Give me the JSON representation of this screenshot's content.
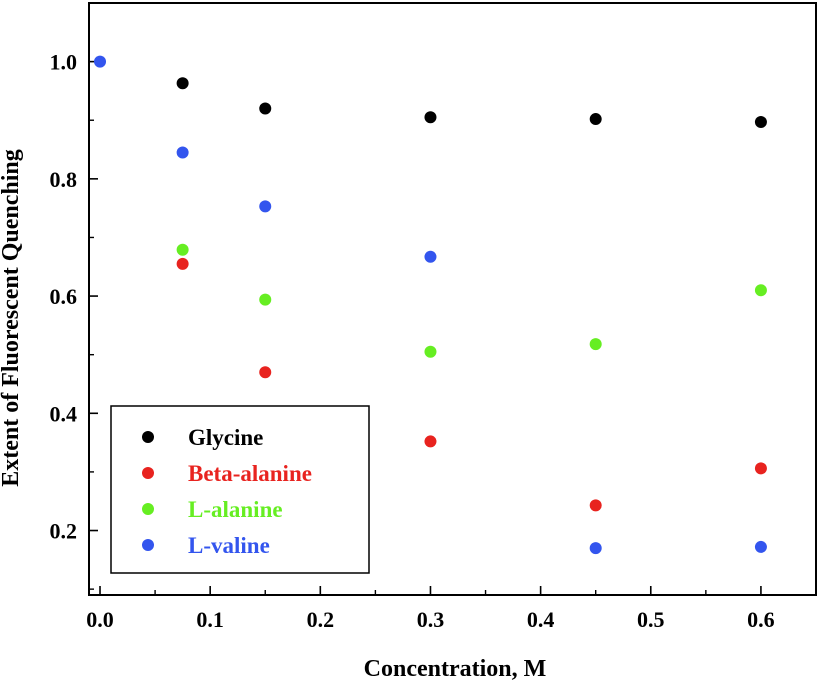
{
  "chart_data": {
    "type": "scatter",
    "title": "",
    "xlabel": "Concentration, M",
    "ylabel": "Extent of Fluorescent Quenching",
    "xlim": [
      -0.01,
      0.65
    ],
    "ylim": [
      0.09,
      1.1
    ],
    "x_ticks": [
      0.0,
      0.1,
      0.2,
      0.3,
      0.4,
      0.5,
      0.6
    ],
    "x_tick_labels": [
      "0.0",
      "0.1",
      "0.2",
      "0.3",
      "0.4",
      "0.5",
      "0.6"
    ],
    "y_ticks": [
      0.2,
      0.4,
      0.6,
      0.8,
      1.0
    ],
    "y_tick_labels": [
      "0.2",
      "0.4",
      "0.6",
      "0.8",
      "1.0"
    ],
    "grid": false,
    "legend_position": "bottom-left",
    "series": [
      {
        "name": "Glycine",
        "color": "#000000",
        "points": [
          [
            0.075,
            0.963
          ],
          [
            0.15,
            0.92
          ],
          [
            0.3,
            0.905
          ],
          [
            0.45,
            0.902
          ],
          [
            0.6,
            0.897
          ]
        ]
      },
      {
        "name": "Beta-alanine",
        "color": "#e8231f",
        "points": [
          [
            0.075,
            0.655
          ],
          [
            0.15,
            0.47
          ],
          [
            0.3,
            0.352
          ],
          [
            0.45,
            0.243
          ],
          [
            0.6,
            0.306
          ]
        ]
      },
      {
        "name": "L-alanine",
        "color": "#66ee22",
        "points": [
          [
            0.075,
            0.679
          ],
          [
            0.15,
            0.594
          ],
          [
            0.3,
            0.505
          ],
          [
            0.45,
            0.518
          ],
          [
            0.6,
            0.61
          ]
        ]
      },
      {
        "name": "L-valine",
        "color": "#3355ee",
        "points": [
          [
            0.0,
            1.0
          ],
          [
            0.075,
            0.845
          ],
          [
            0.15,
            0.753
          ],
          [
            0.3,
            0.667
          ],
          [
            0.45,
            0.17
          ],
          [
            0.6,
            0.172
          ]
        ]
      }
    ]
  }
}
